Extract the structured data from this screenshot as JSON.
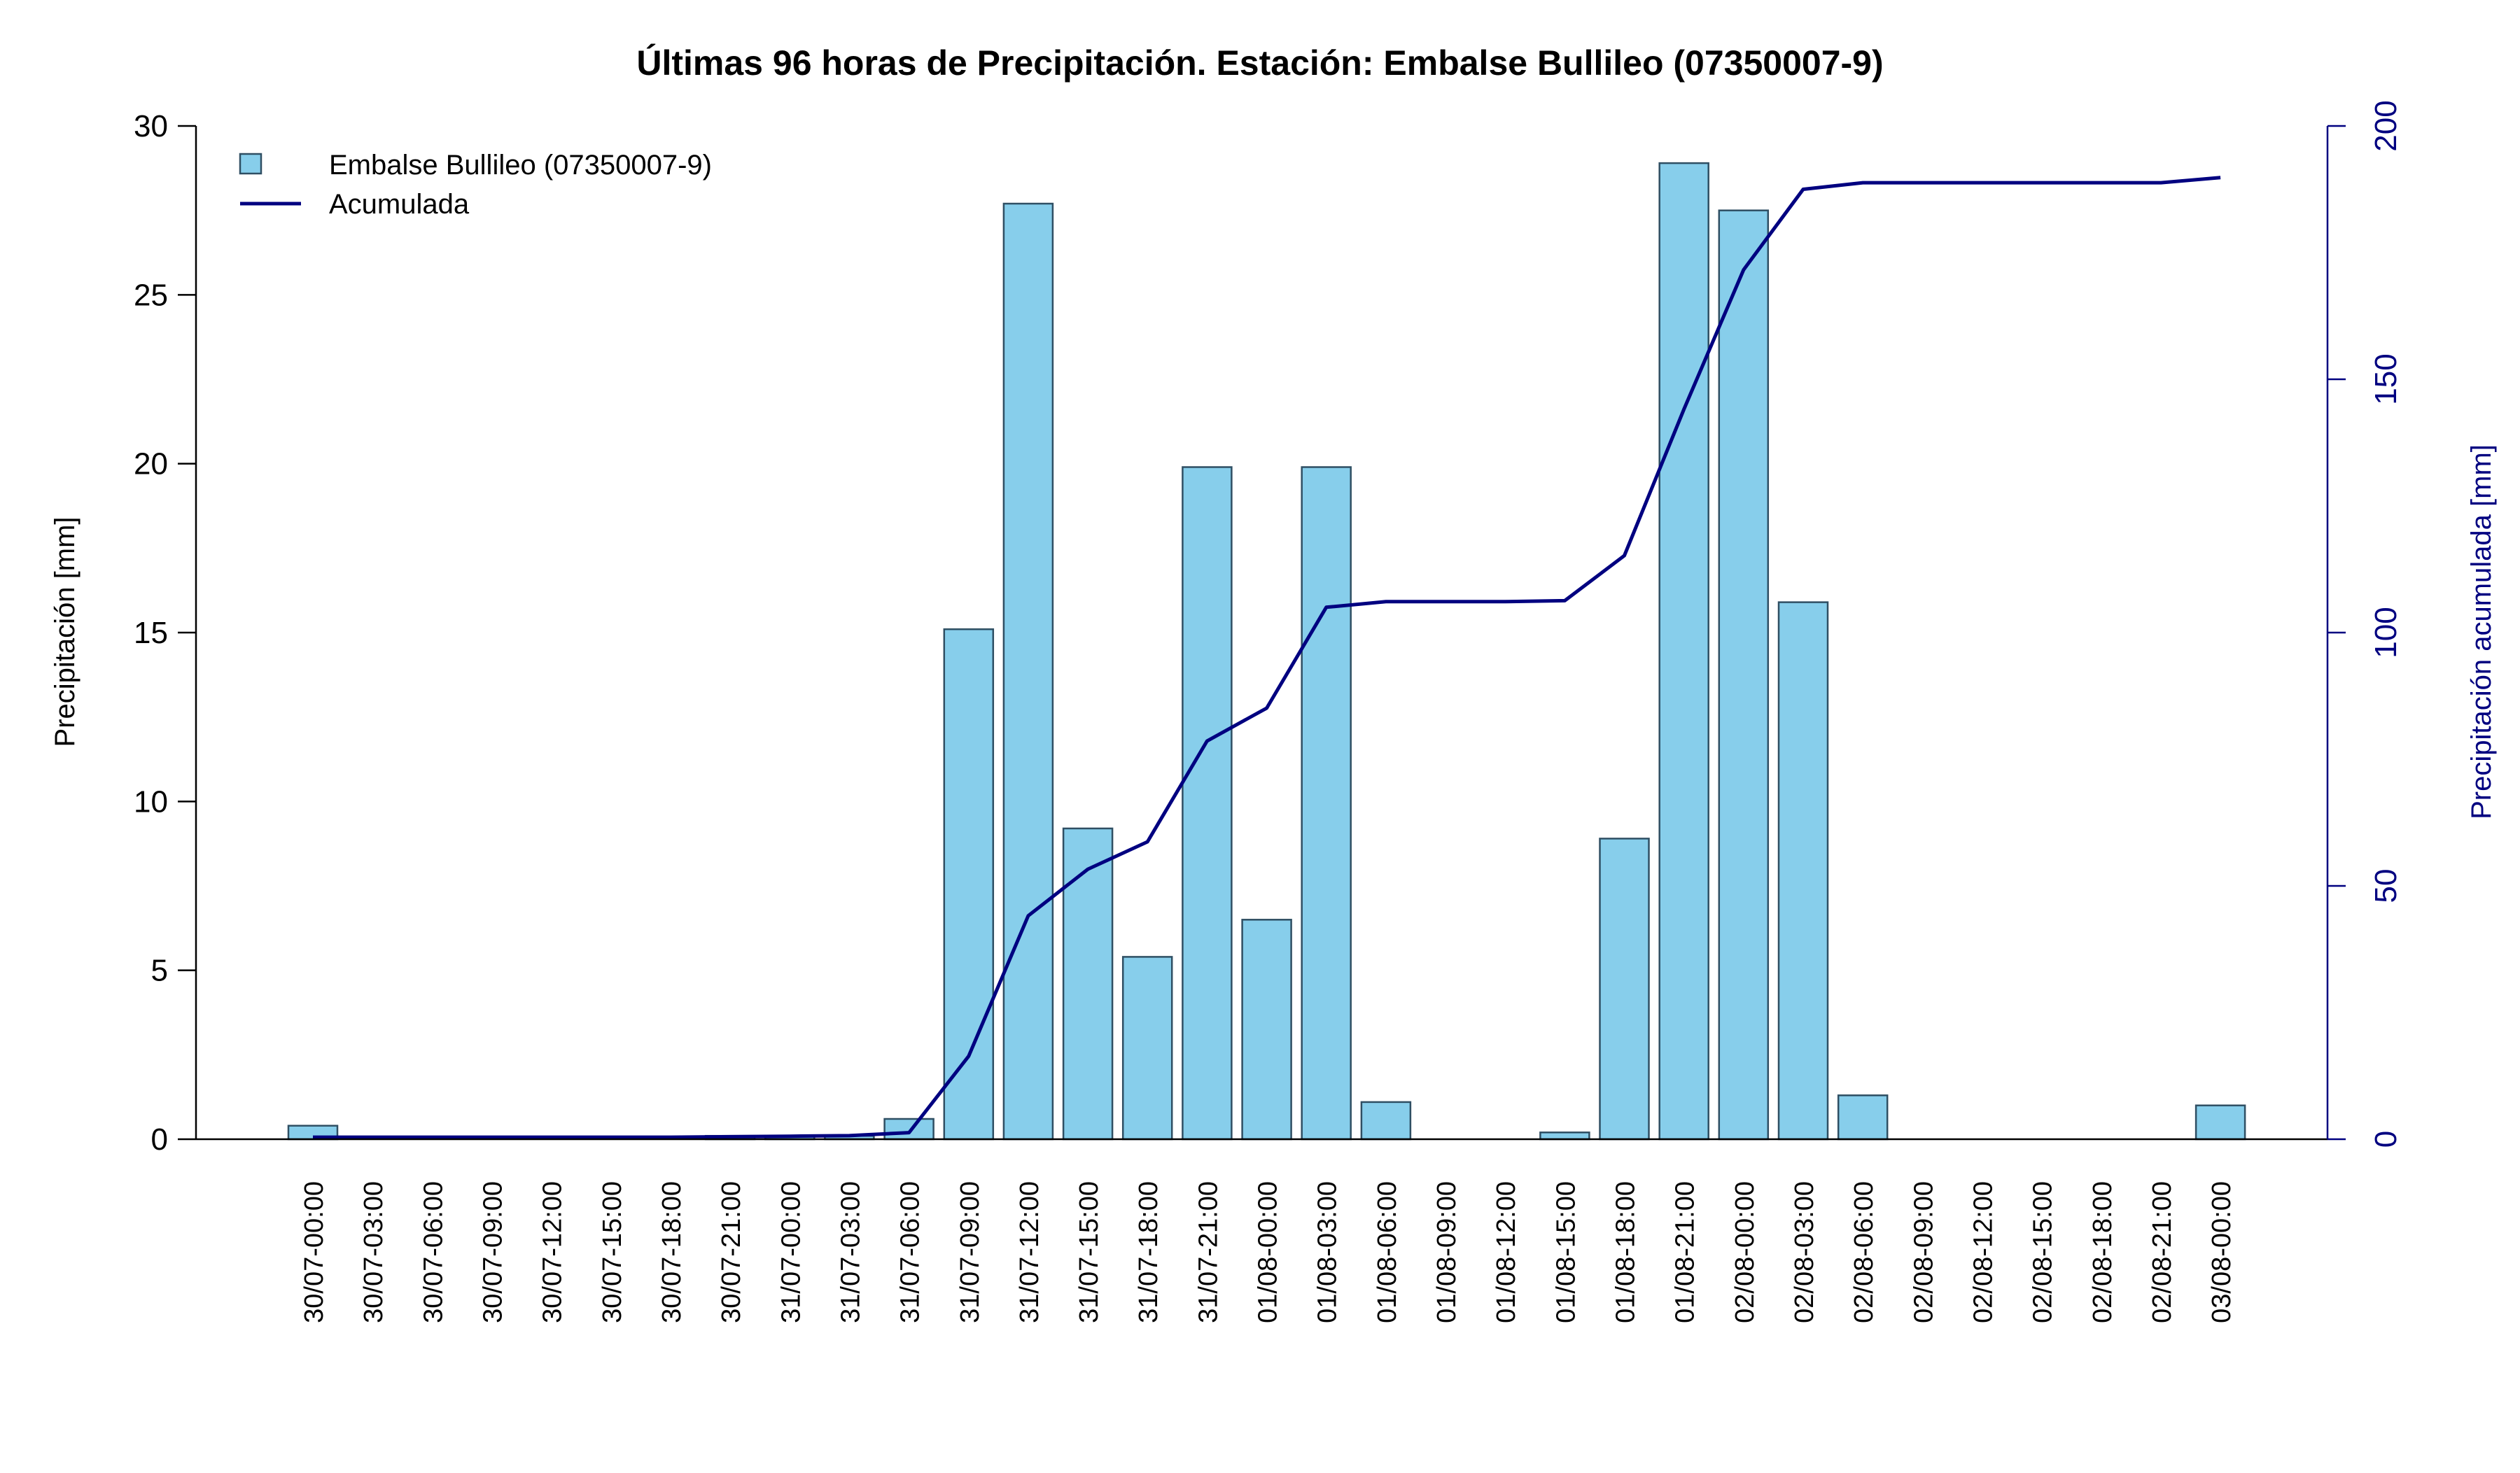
{
  "chart_data": {
    "type": "bar",
    "title": "Últimas 96 horas de Precipitación. Estación: Embalse Bullileo (07350007-9)",
    "ylabel": "Precipitación [mm]",
    "y2label": "Precipitación acumulada [mm]",
    "ylim": [
      0,
      30
    ],
    "y2lim": [
      0,
      200
    ],
    "yticks": [
      0,
      5,
      10,
      15,
      20,
      25,
      30
    ],
    "y2ticks": [
      0,
      50,
      100,
      150,
      200
    ],
    "legend": {
      "position": "top-left",
      "bar_label": "Embalse Bullileo (07350007-9)",
      "line_label": "Acumulada"
    },
    "categories": [
      "30/07-00:00",
      "30/07-03:00",
      "30/07-06:00",
      "30/07-09:00",
      "30/07-12:00",
      "30/07-15:00",
      "30/07-18:00",
      "30/07-21:00",
      "31/07-00:00",
      "31/07-03:00",
      "31/07-06:00",
      "31/07-09:00",
      "31/07-12:00",
      "31/07-15:00",
      "31/07-18:00",
      "31/07-21:00",
      "01/08-00:00",
      "01/08-03:00",
      "01/08-06:00",
      "01/08-09:00",
      "01/08-12:00",
      "01/08-15:00",
      "01/08-18:00",
      "01/08-21:00",
      "02/08-00:00",
      "02/08-03:00",
      "02/08-06:00",
      "02/08-09:00",
      "02/08-12:00",
      "02/08-15:00",
      "02/08-18:00",
      "02/08-21:00",
      "03/08-00:00"
    ],
    "series": [
      {
        "name": "Embalse Bullileo (07350007-9)",
        "kind": "bar",
        "axis": "left",
        "values": [
          0.4,
          0,
          0,
          0,
          0,
          0,
          0,
          0.1,
          0.1,
          0.1,
          0.6,
          15.1,
          27.7,
          9.2,
          5.4,
          19.9,
          6.5,
          19.9,
          1.1,
          0,
          0,
          0.2,
          8.9,
          28.9,
          27.5,
          15.9,
          1.3,
          0,
          0,
          0,
          0,
          0,
          1.0
        ]
      },
      {
        "name": "Acumulada",
        "kind": "line",
        "axis": "right",
        "values": [
          0.4,
          0.4,
          0.4,
          0.4,
          0.4,
          0.4,
          0.4,
          0.5,
          0.6,
          0.7,
          1.3,
          16.4,
          44.1,
          53.3,
          58.7,
          78.6,
          85.1,
          105.0,
          106.1,
          106.1,
          106.1,
          106.3,
          115.2,
          144.1,
          171.6,
          187.5,
          188.8,
          188.8,
          188.8,
          188.8,
          188.8,
          188.8,
          189.8
        ]
      }
    ],
    "colors": {
      "bar_fill": "#87CEEB",
      "bar_stroke": "#2F4F63",
      "line": "#000080",
      "right_axis": "#000080",
      "left_axis": "#000000"
    },
    "grid": false
  }
}
